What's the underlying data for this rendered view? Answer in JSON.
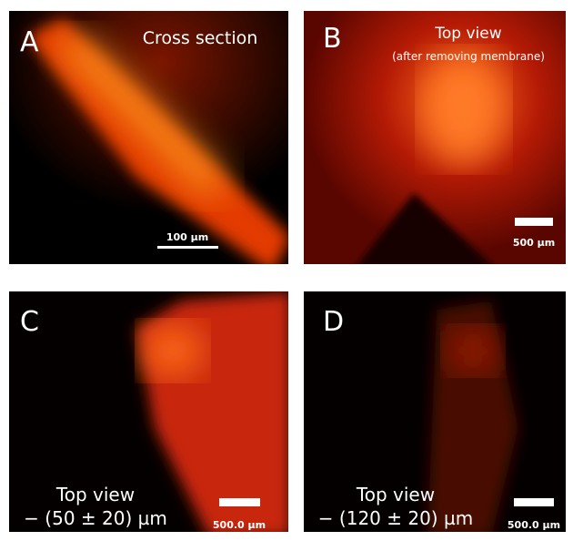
{
  "panels": [
    {
      "letter": "A",
      "title": "Cross section",
      "scale_bar": "100 µm"
    },
    {
      "letter": "B",
      "title": "Top view",
      "subtitle": "(after removing membrane)",
      "scale_bar": "500 µm"
    },
    {
      "letter": "C",
      "title": "Top view",
      "subtitle": "− (50 ± 20) µm",
      "scale_bar": "500.0 µm"
    },
    {
      "letter": "D",
      "title": "Top view",
      "subtitle": "− (120 ± 20) µm",
      "scale_bar": "500.0 µm"
    }
  ]
}
